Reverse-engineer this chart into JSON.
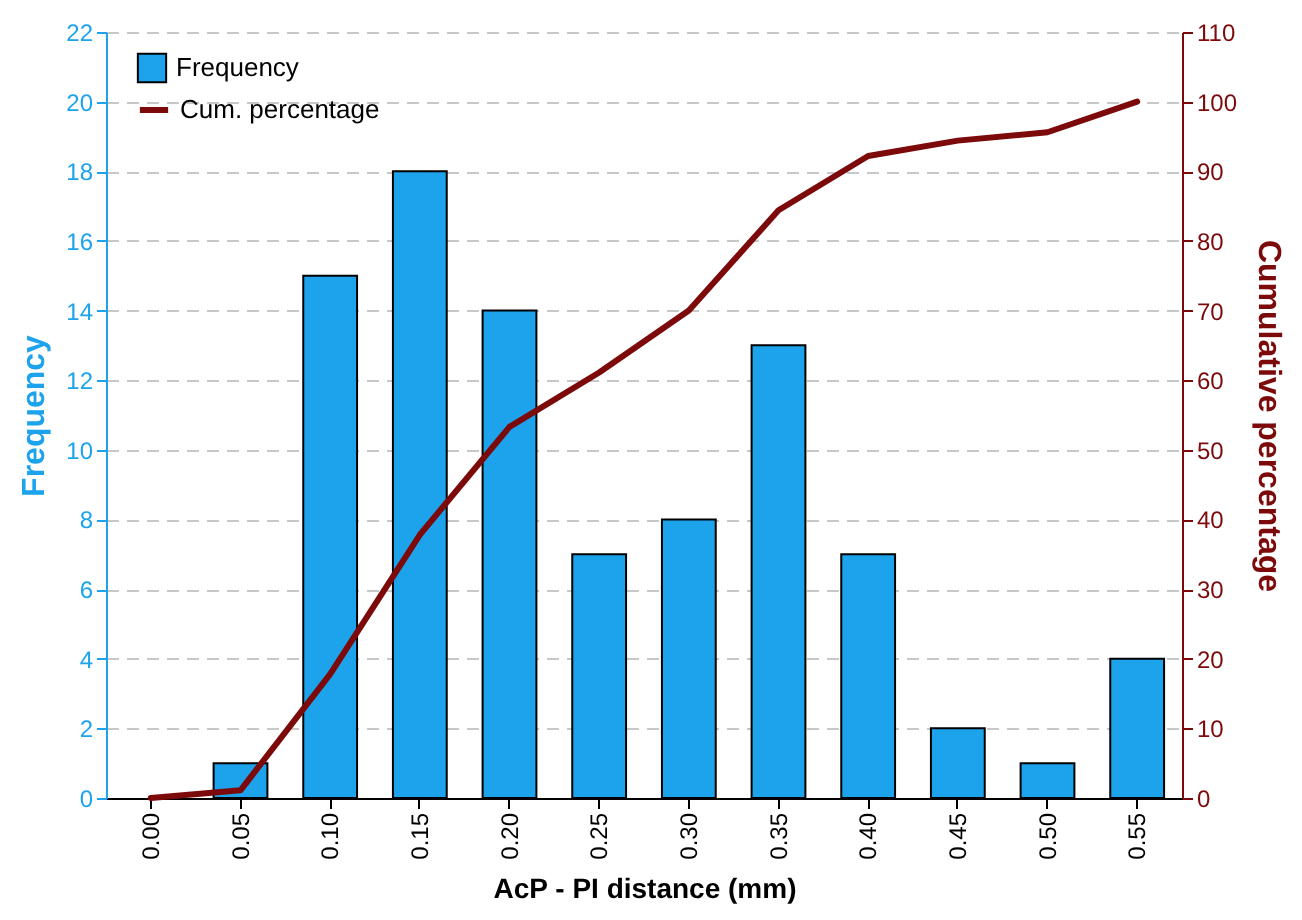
{
  "chart_data": {
    "type": "bar",
    "xlabel": "AcP - PI distance (mm)",
    "ylabel": "Frequency",
    "y2label": "Cumulative percentage",
    "categories": [
      "0.00",
      "0.05",
      "0.10",
      "0.15",
      "0.20",
      "0.25",
      "0.30",
      "0.35",
      "0.40",
      "0.45",
      "0.50",
      "0.55"
    ],
    "series": [
      {
        "name": "Frequency",
        "color": "#1ca3ec",
        "values": [
          null,
          1,
          15,
          18,
          14,
          7,
          8,
          13,
          7,
          2,
          1,
          4
        ]
      },
      {
        "name": "Cum. percentage",
        "type": "line",
        "axis": "y2",
        "color": "#7d0a0a",
        "values": [
          0,
          1.1,
          17.8,
          37.8,
          53.3,
          61.1,
          70,
          84.4,
          92.2,
          94.4,
          95.6,
          100
        ]
      }
    ],
    "ylim": [
      0,
      22
    ],
    "yticks": [
      0,
      2,
      4,
      6,
      8,
      10,
      12,
      14,
      16,
      18,
      20,
      22
    ],
    "y2lim": [
      0,
      110
    ],
    "y2ticks": [
      0,
      10,
      20,
      30,
      40,
      50,
      60,
      70,
      80,
      90,
      100,
      110
    ],
    "grid": "y",
    "legend": "top left"
  }
}
